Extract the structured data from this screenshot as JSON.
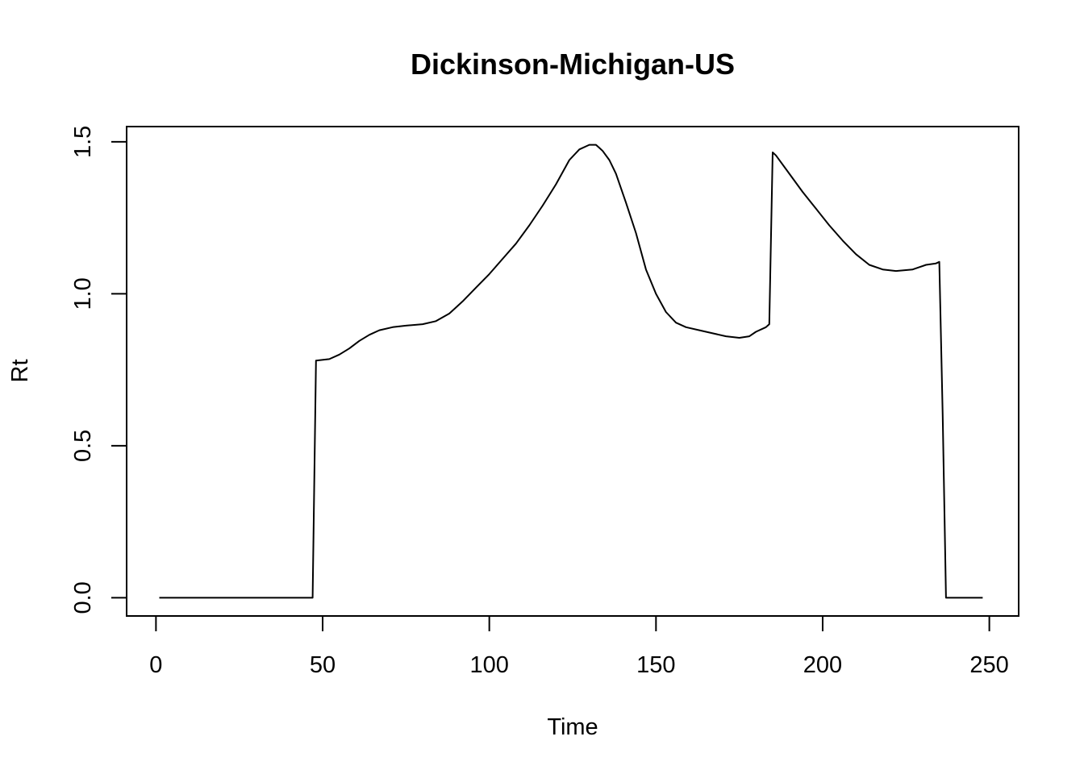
{
  "chart_data": {
    "type": "line",
    "title": "Dickinson-Michigan-US",
    "xlabel": "Time",
    "ylabel": "Rt",
    "xlim": [
      -8.8,
      258.8
    ],
    "ylim": [
      -0.06,
      1.55
    ],
    "xticks": [
      0,
      50,
      100,
      150,
      200,
      250
    ],
    "yticks": [
      0.0,
      0.5,
      1.0,
      1.5
    ],
    "ytick_labels": [
      "0.0",
      "0.5",
      "1.0",
      "1.5"
    ],
    "grid": false,
    "legend": "none",
    "line_color": "#000000",
    "series": [
      {
        "x": [
          1,
          47,
          48,
          52,
          55,
          58,
          61,
          64,
          67,
          71,
          75,
          80,
          84,
          88,
          92,
          96,
          100,
          104,
          108,
          112,
          116,
          120,
          124,
          127,
          130,
          132,
          133,
          134,
          136,
          138,
          141,
          144,
          147,
          150,
          153,
          156,
          159,
          163,
          167,
          171,
          175,
          178,
          180,
          183,
          184,
          185,
          186,
          190,
          194,
          198,
          202,
          206,
          210,
          214,
          218,
          222,
          227,
          231,
          234,
          235,
          236,
          237,
          248
        ],
        "y": [
          0,
          0,
          0.78,
          0.785,
          0.8,
          0.82,
          0.845,
          0.865,
          0.88,
          0.89,
          0.895,
          0.9,
          0.91,
          0.935,
          0.975,
          1.02,
          1.065,
          1.115,
          1.165,
          1.225,
          1.29,
          1.36,
          1.44,
          1.475,
          1.49,
          1.49,
          1.48,
          1.47,
          1.44,
          1.395,
          1.3,
          1.2,
          1.08,
          1.0,
          0.94,
          0.905,
          0.89,
          0.88,
          0.87,
          0.86,
          0.855,
          0.86,
          0.875,
          0.89,
          0.9,
          1.465,
          1.455,
          1.395,
          1.335,
          1.28,
          1.225,
          1.175,
          1.13,
          1.095,
          1.08,
          1.075,
          1.08,
          1.095,
          1.1,
          1.105,
          0.6,
          0,
          0
        ]
      }
    ]
  }
}
